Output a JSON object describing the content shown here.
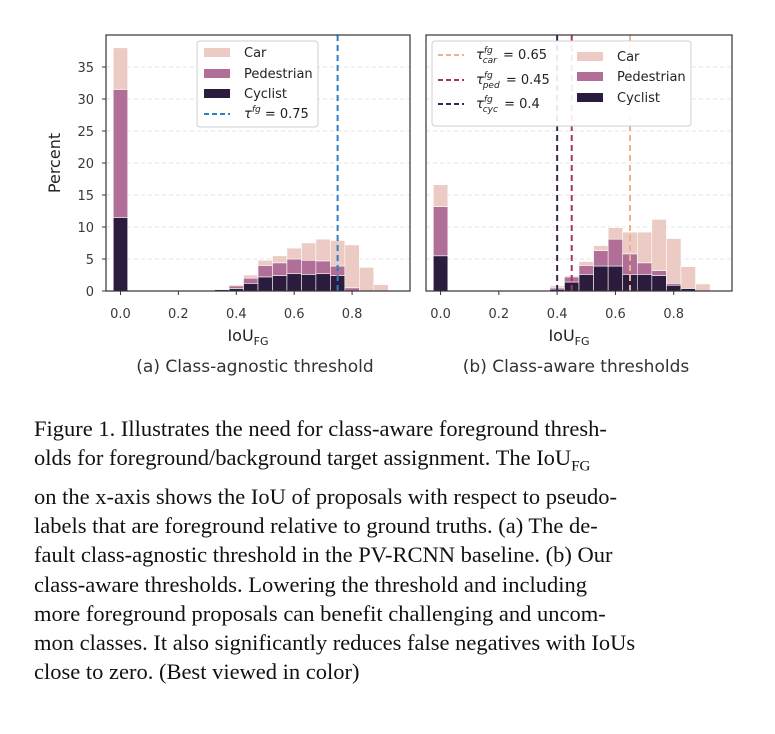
{
  "colors": {
    "car": "#ebcbc4",
    "pedestrian": "#b16e96",
    "cyclist": "#2b1b3d",
    "threshold_agnostic": "#2f7ebf",
    "threshold_car": "#e9b38e",
    "threshold_ped": "#a63468",
    "threshold_cyc": "#3b2452"
  },
  "chart_data": [
    {
      "type": "bar",
      "stacked": true,
      "caption": "(a) Class-agnostic threshold",
      "xlabel": "IoU",
      "xlabel_sub": "FG",
      "ylabel": "Percent",
      "xlim": [
        -0.05,
        1.0
      ],
      "ylim": [
        0,
        40
      ],
      "xticks": [
        "0.0",
        "0.2",
        "0.4",
        "0.6",
        "0.8"
      ],
      "yticks": [
        "0",
        "5",
        "10",
        "15",
        "20",
        "25",
        "30",
        "35"
      ],
      "bin_width": 0.05,
      "x": [
        0.0,
        0.05,
        0.1,
        0.15,
        0.2,
        0.25,
        0.3,
        0.35,
        0.4,
        0.45,
        0.5,
        0.55,
        0.6,
        0.65,
        0.7,
        0.75,
        0.8,
        0.85,
        0.9
      ],
      "series": [
        {
          "name": "Cyclist",
          "key": "cyclist",
          "values": [
            11.5,
            0,
            0,
            0,
            0,
            0,
            0,
            0.2,
            0.4,
            1.2,
            2.2,
            2.4,
            2.7,
            2.6,
            2.7,
            2.4,
            0,
            0,
            0
          ]
        },
        {
          "name": "Pedestrian",
          "key": "pedestrian",
          "values": [
            20.0,
            0,
            0,
            0,
            0,
            0,
            0,
            0.1,
            0.4,
            0.8,
            1.8,
            2.0,
            2.3,
            2.2,
            2.0,
            1.5,
            0.5,
            0,
            0
          ]
        },
        {
          "name": "Car",
          "key": "car",
          "values": [
            6.5,
            0,
            0,
            0,
            0,
            0,
            0,
            0,
            0.2,
            0.5,
            0.8,
            1.1,
            1.7,
            2.7,
            3.4,
            4.0,
            6.7,
            3.7,
            1.0
          ]
        }
      ],
      "thresholds": [
        {
          "label_main": "τ",
          "label_sup": "fg",
          "label_tail": "= 0.75",
          "value": 0.75,
          "key": "threshold_agnostic"
        }
      ]
    },
    {
      "type": "bar",
      "stacked": true,
      "caption": "(b) Class-aware thresholds",
      "xlabel": "IoU",
      "xlabel_sub": "FG",
      "xlim": [
        -0.05,
        1.0
      ],
      "ylim": [
        0,
        40
      ],
      "xticks": [
        "0.0",
        "0.2",
        "0.4",
        "0.6",
        "0.8"
      ],
      "yticks": [],
      "bin_width": 0.05,
      "x": [
        0.0,
        0.05,
        0.1,
        0.15,
        0.2,
        0.25,
        0.3,
        0.35,
        0.4,
        0.45,
        0.5,
        0.55,
        0.6,
        0.65,
        0.7,
        0.75,
        0.8,
        0.85,
        0.9
      ],
      "series": [
        {
          "name": "Cyclist",
          "key": "cyclist",
          "values": [
            5.5,
            0,
            0,
            0,
            0,
            0,
            0,
            0,
            0.3,
            1.4,
            2.6,
            3.9,
            3.9,
            2.6,
            2.6,
            2.4,
            0.9,
            0.4,
            0
          ]
        },
        {
          "name": "Pedestrian",
          "key": "pedestrian",
          "values": [
            7.7,
            0,
            0,
            0,
            0,
            0,
            0,
            0,
            0.2,
            0.8,
            1.4,
            2.4,
            4.2,
            3.2,
            1.8,
            0.8,
            0.3,
            0,
            0
          ]
        },
        {
          "name": "Car",
          "key": "car",
          "values": [
            3.4,
            0,
            0,
            0,
            0,
            0,
            0,
            0,
            0.3,
            0.2,
            0.6,
            0.8,
            1.8,
            3.4,
            4.8,
            8.0,
            7.0,
            3.4,
            1.1
          ]
        }
      ],
      "thresholds": [
        {
          "label_main": "τ",
          "label_sup": "fg",
          "label_sub": "car",
          "label_tail": "= 0.65",
          "value": 0.65,
          "key": "threshold_car"
        },
        {
          "label_main": "τ",
          "label_sup": "fg",
          "label_sub": "ped",
          "label_tail": "= 0.45",
          "value": 0.45,
          "key": "threshold_ped"
        },
        {
          "label_main": "τ",
          "label_sup": "fg",
          "label_sub": "cyc",
          "label_tail": "= 0.4",
          "value": 0.4,
          "key": "threshold_cyc"
        }
      ]
    }
  ],
  "caption": {
    "line1": "Figure 1.  Illustrates the need for class-aware foreground thresh-",
    "line2": "olds for foreground/background target assignment.  The ",
    "line2_math": "IoU",
    "line2_math_sub": "FG",
    "line3": "on the x-axis shows the IoU of proposals with respect to pseudo-",
    "line4": "labels that are foreground relative to ground truths.  (a) The de-",
    "line5": "fault class-agnostic threshold in the PV-RCNN baseline.  (b) Our",
    "line6": "class-aware thresholds.   Lowering the threshold and including",
    "line7": "more foreground proposals can benefit challenging and uncom-",
    "line8": "mon classes. It also significantly reduces false negatives with IoUs",
    "line9": "close to zero. (Best viewed in color)"
  }
}
